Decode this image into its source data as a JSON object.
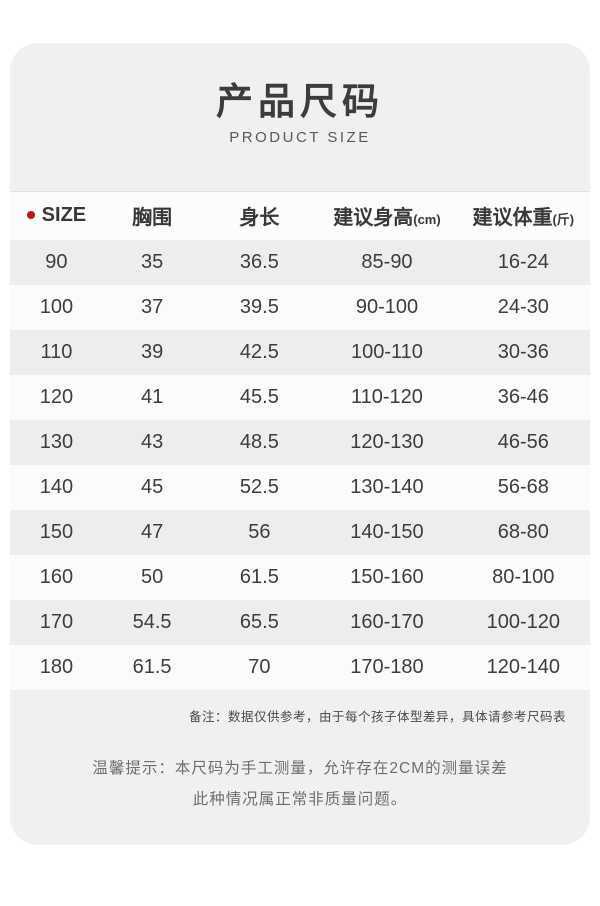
{
  "page": {
    "title": "产品尺码",
    "subtitle": "PRODUCT SIZE"
  },
  "table": {
    "columns": [
      {
        "label": "SIZE"
      },
      {
        "label": "胸围"
      },
      {
        "label": "身长"
      },
      {
        "label": "建议身高",
        "unit": "(cm)"
      },
      {
        "label": "建议体重",
        "unit": "(斤)"
      }
    ],
    "rows": [
      [
        "90",
        "35",
        "36.5",
        "85-90",
        "16-24"
      ],
      [
        "100",
        "37",
        "39.5",
        "90-100",
        "24-30"
      ],
      [
        "110",
        "39",
        "42.5",
        "100-110",
        "30-36"
      ],
      [
        "120",
        "41",
        "45.5",
        "110-120",
        "36-46"
      ],
      [
        "130",
        "43",
        "48.5",
        "120-130",
        "46-56"
      ],
      [
        "140",
        "45",
        "52.5",
        "130-140",
        "56-68"
      ],
      [
        "150",
        "47",
        "56",
        "140-150",
        "68-80"
      ],
      [
        "160",
        "50",
        "61.5",
        "150-160",
        "80-100"
      ],
      [
        "170",
        "54.5",
        "65.5",
        "160-170",
        "100-120"
      ],
      [
        "180",
        "61.5",
        "70",
        "170-180",
        "120-140"
      ]
    ]
  },
  "notes": {
    "remark": "备注：数据仅供参考，由于每个孩子体型差异，具体请参考尺码表",
    "tip_line1": "温馨提示：本尺码为手工测量，允许存在2CM的测量误差",
    "tip_line2": "此种情况属正常非质量问题。"
  },
  "colors": {
    "card_bg": "#f1f0ef",
    "row_gray_bg": "#efedec",
    "row_white_bg": "#fbfbfa",
    "header_bg": "#fcfcfb",
    "accent_red": "#bf1219",
    "text_dark": "#3d3d3d"
  }
}
